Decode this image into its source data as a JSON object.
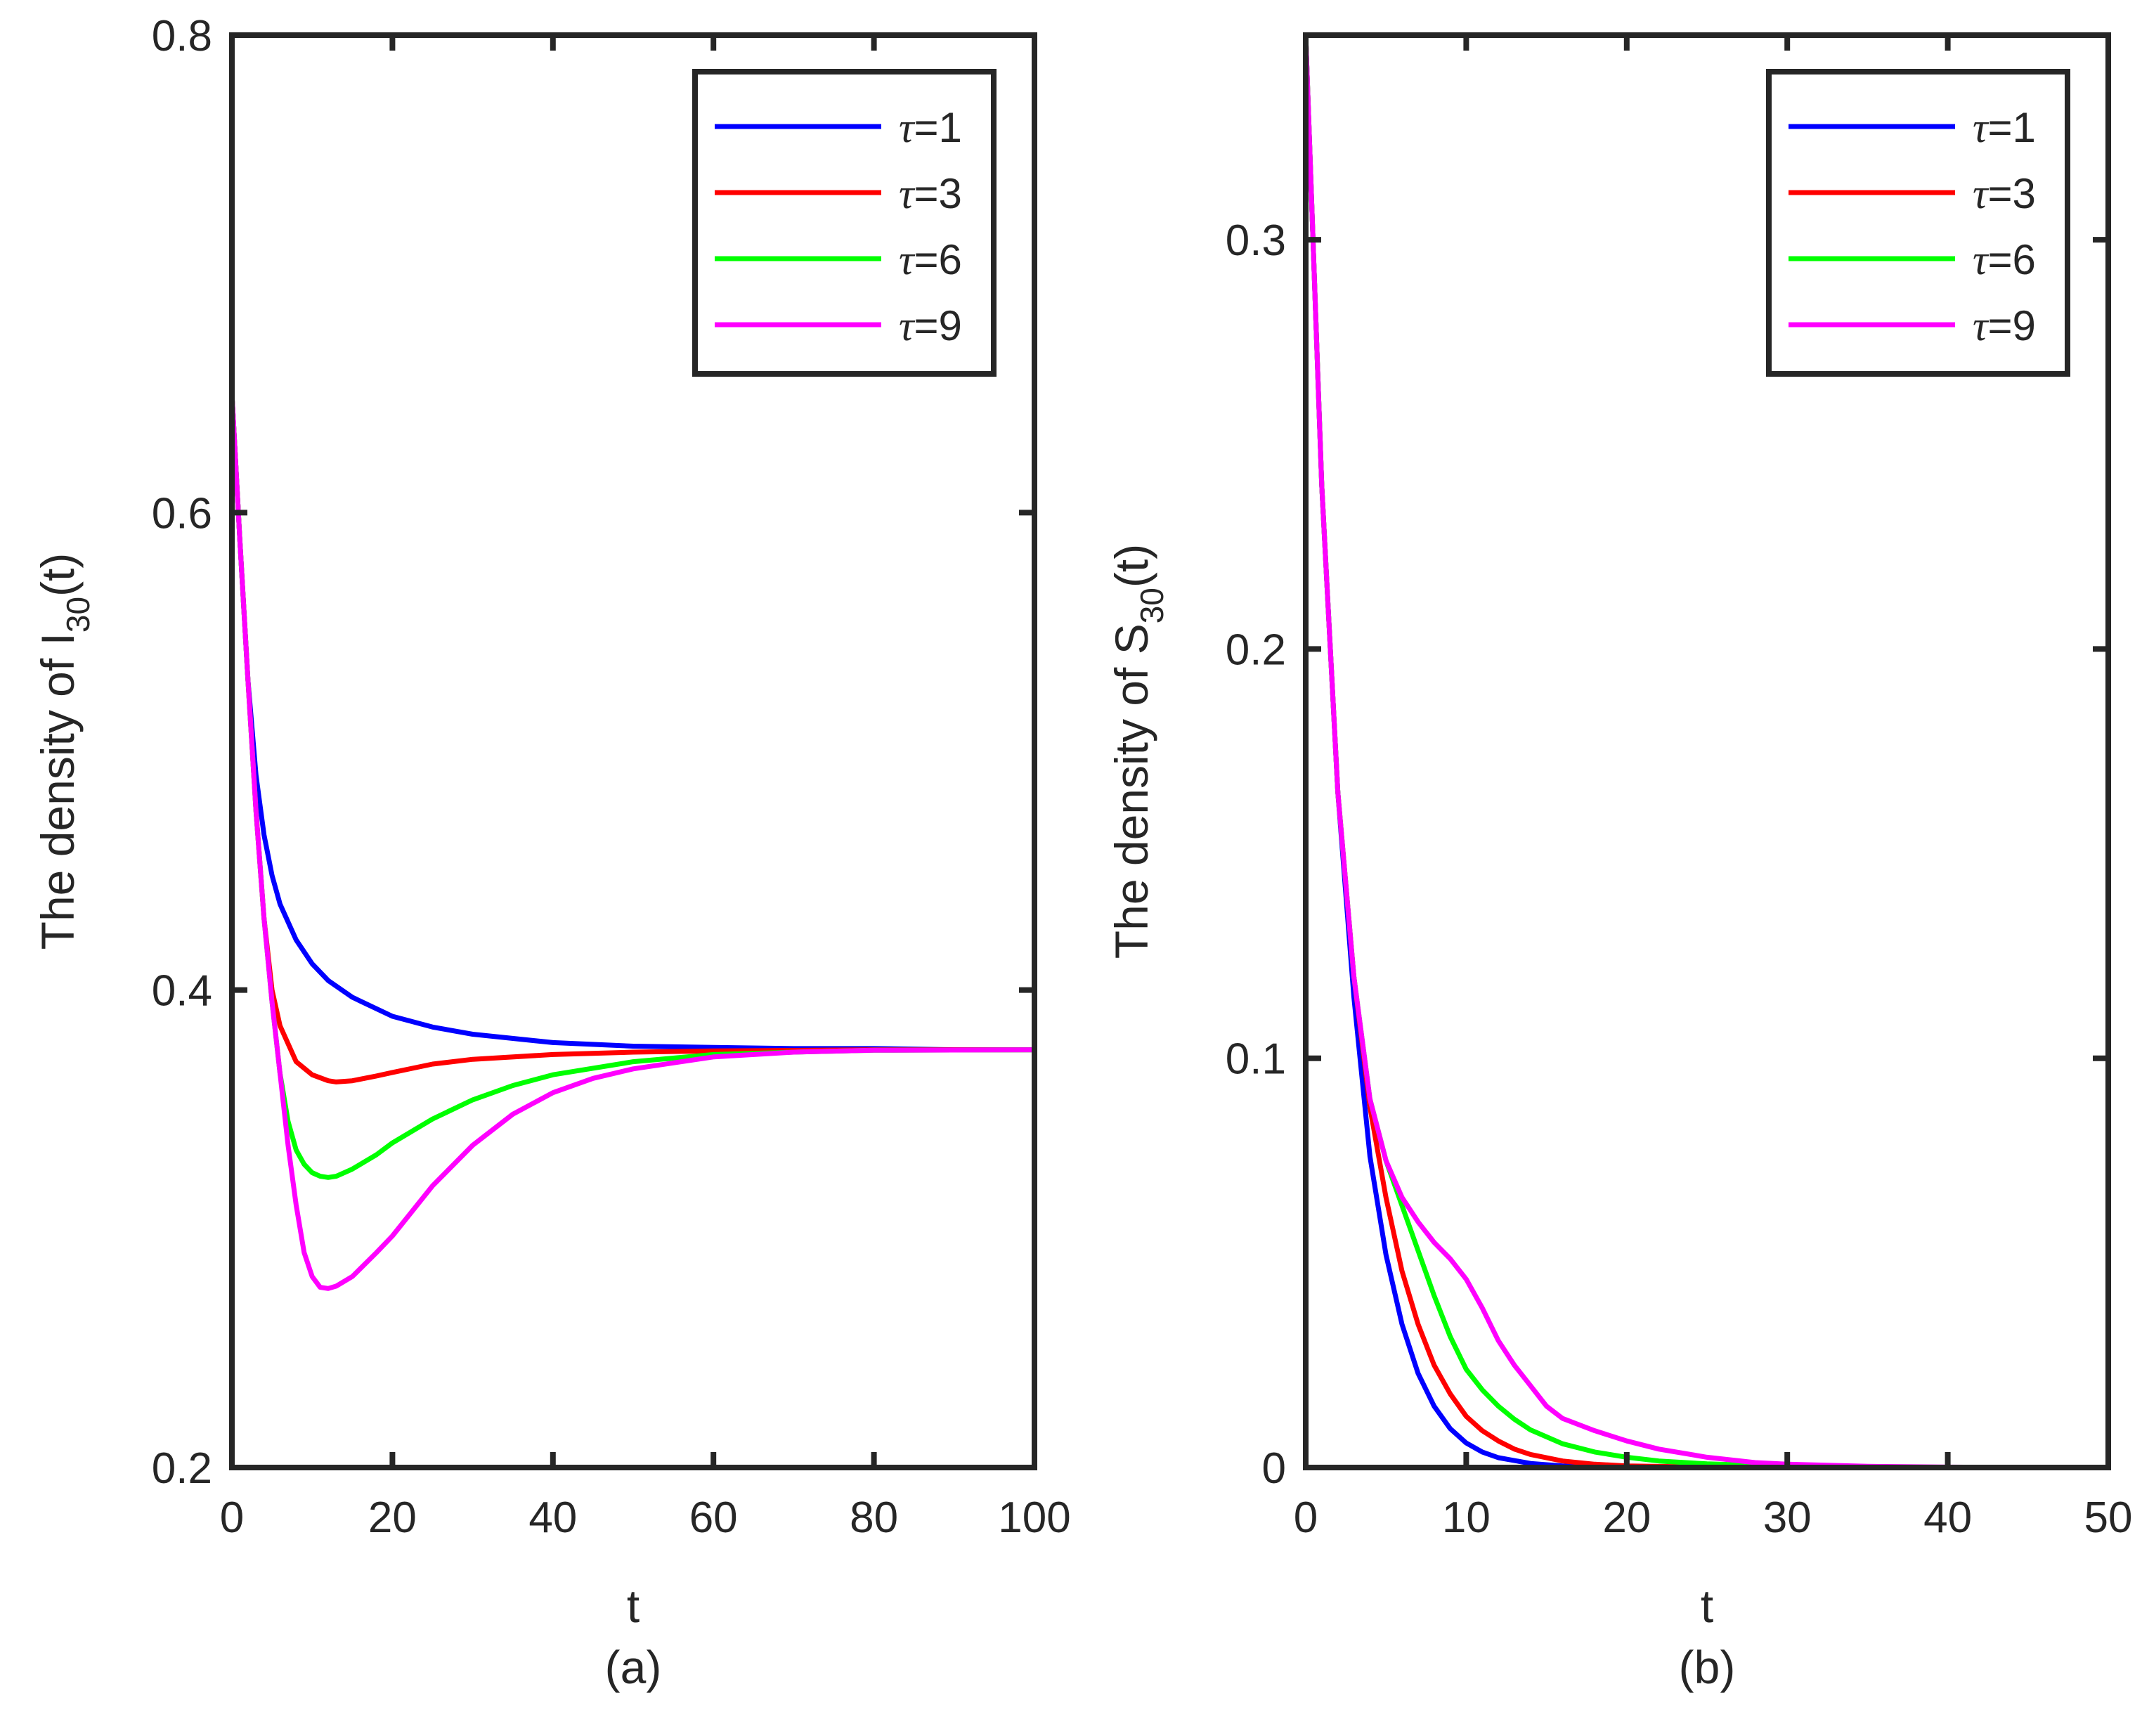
{
  "chart_data": [
    {
      "type": "line",
      "panel_label": "(a)",
      "xlabel": "t",
      "ylabel": {
        "prefix": "The density of I",
        "subscript": "30",
        "suffix": "(t)"
      },
      "xlim": [
        0,
        100
      ],
      "ylim": [
        0.2,
        0.8
      ],
      "xticks": [
        0,
        20,
        40,
        60,
        80,
        100
      ],
      "xtick_labels": [
        "0",
        "20",
        "40",
        "60",
        "80",
        "100"
      ],
      "yticks": [
        0.2,
        0.4,
        0.6,
        0.8
      ],
      "ytick_labels": [
        "0.2",
        "0.4",
        "0.6",
        "0.8"
      ],
      "legend_position": "top-right",
      "series": [
        {
          "name": "τ=1",
          "symbol": "τ",
          "value_text": "=1",
          "color": "#0000ff",
          "x": [
            0,
            1,
            2,
            3,
            4,
            5,
            6,
            8,
            10,
            12,
            15,
            20,
            25,
            30,
            40,
            50,
            60,
            70,
            80,
            90,
            100
          ],
          "y": [
            0.65,
            0.588,
            0.53,
            0.49,
            0.465,
            0.448,
            0.436,
            0.421,
            0.411,
            0.404,
            0.397,
            0.389,
            0.3845,
            0.3815,
            0.378,
            0.3765,
            0.376,
            0.3755,
            0.3755,
            0.375,
            0.375
          ]
        },
        {
          "name": "τ=3",
          "symbol": "τ",
          "value_text": "=3",
          "color": "#ff0000",
          "x": [
            0,
            1,
            2,
            3,
            4,
            5,
            6,
            8,
            10,
            12,
            13,
            15,
            18,
            20,
            25,
            30,
            40,
            50,
            60,
            80,
            100
          ],
          "y": [
            0.65,
            0.588,
            0.53,
            0.475,
            0.43,
            0.4,
            0.385,
            0.37,
            0.3645,
            0.362,
            0.3615,
            0.362,
            0.364,
            0.3655,
            0.369,
            0.371,
            0.373,
            0.374,
            0.3745,
            0.375,
            0.375
          ]
        },
        {
          "name": "τ=6",
          "symbol": "τ",
          "value_text": "=6",
          "color": "#00ff00",
          "x": [
            0,
            1,
            2,
            3,
            4,
            5,
            6,
            7,
            8,
            9,
            10,
            11,
            12,
            13,
            15,
            18,
            20,
            25,
            30,
            35,
            40,
            50,
            60,
            70,
            80,
            100
          ],
          "y": [
            0.65,
            0.588,
            0.53,
            0.475,
            0.43,
            0.395,
            0.365,
            0.345,
            0.333,
            0.327,
            0.3235,
            0.322,
            0.3215,
            0.322,
            0.325,
            0.331,
            0.336,
            0.346,
            0.354,
            0.36,
            0.3645,
            0.37,
            0.373,
            0.374,
            0.3748,
            0.375
          ]
        },
        {
          "name": "τ=9",
          "symbol": "τ",
          "value_text": "=9",
          "color": "#ff00ff",
          "x": [
            0,
            1,
            2,
            3,
            4,
            5,
            6,
            7,
            8,
            9,
            10,
            11,
            12,
            13,
            15,
            18,
            20,
            25,
            30,
            35,
            40,
            45,
            50,
            60,
            70,
            80,
            100
          ],
          "y": [
            0.65,
            0.588,
            0.53,
            0.475,
            0.43,
            0.395,
            0.365,
            0.335,
            0.31,
            0.29,
            0.28,
            0.2755,
            0.275,
            0.276,
            0.28,
            0.29,
            0.297,
            0.318,
            0.335,
            0.348,
            0.357,
            0.363,
            0.367,
            0.372,
            0.374,
            0.3748,
            0.375
          ]
        }
      ]
    },
    {
      "type": "line",
      "panel_label": "(b)",
      "xlabel": "t",
      "ylabel": {
        "prefix": "The density of S",
        "subscript": "30",
        "suffix": "(t)"
      },
      "xlim": [
        0,
        50
      ],
      "ylim": [
        0,
        0.35
      ],
      "xticks": [
        0,
        10,
        20,
        30,
        40,
        50
      ],
      "xtick_labels": [
        "0",
        "10",
        "20",
        "30",
        "40",
        "50"
      ],
      "yticks": [
        0,
        0.1,
        0.2,
        0.3
      ],
      "ytick_labels": [
        "0",
        "0.1",
        "0.2",
        "0.3"
      ],
      "legend_position": "top-right",
      "series": [
        {
          "name": "τ=1",
          "symbol": "τ",
          "value_text": "=1",
          "color": "#0000ff",
          "x": [
            0,
            1,
            2,
            3,
            4,
            5,
            6,
            7,
            8,
            9,
            10,
            11,
            12,
            14,
            16,
            20,
            25,
            30,
            40,
            50
          ],
          "y": [
            0.35,
            0.24,
            0.165,
            0.115,
            0.076,
            0.052,
            0.035,
            0.023,
            0.015,
            0.0095,
            0.006,
            0.0038,
            0.0024,
            0.001,
            0.0004,
            0.0001,
            0.0,
            0.0,
            0.0,
            0.0
          ]
        },
        {
          "name": "τ=3",
          "symbol": "τ",
          "value_text": "=3",
          "color": "#ff0000",
          "x": [
            0,
            1,
            2,
            3,
            4,
            5,
            6,
            7,
            8,
            9,
            10,
            11,
            12,
            13,
            14,
            16,
            18,
            20,
            25,
            30,
            40,
            50
          ],
          "y": [
            0.35,
            0.24,
            0.165,
            0.12,
            0.088,
            0.066,
            0.048,
            0.035,
            0.025,
            0.018,
            0.0125,
            0.009,
            0.0065,
            0.0045,
            0.0032,
            0.0016,
            0.0008,
            0.0004,
            0.0001,
            0.0,
            0.0,
            0.0
          ]
        },
        {
          "name": "τ=6",
          "symbol": "τ",
          "value_text": "=6",
          "color": "#00ff00",
          "x": [
            0,
            1,
            2,
            3,
            4,
            5,
            6,
            7,
            8,
            9,
            10,
            11,
            12,
            13,
            14,
            16,
            18,
            20,
            22,
            25,
            30,
            35,
            40,
            50
          ],
          "y": [
            0.35,
            0.24,
            0.165,
            0.12,
            0.09,
            0.075,
            0.064,
            0.053,
            0.042,
            0.032,
            0.024,
            0.019,
            0.015,
            0.0118,
            0.0092,
            0.0058,
            0.0038,
            0.0025,
            0.0016,
            0.0009,
            0.0003,
            0.0001,
            0.0,
            0.0
          ]
        },
        {
          "name": "τ=9",
          "symbol": "τ",
          "value_text": "=9",
          "color": "#ff00ff",
          "x": [
            0,
            1,
            2,
            3,
            4,
            5,
            6,
            7,
            8,
            9,
            10,
            11,
            12,
            13,
            14,
            15,
            16,
            18,
            20,
            22,
            25,
            28,
            30,
            35,
            40,
            50
          ],
          "y": [
            0.35,
            0.24,
            0.165,
            0.12,
            0.09,
            0.075,
            0.066,
            0.06,
            0.055,
            0.051,
            0.046,
            0.039,
            0.031,
            0.025,
            0.02,
            0.015,
            0.012,
            0.009,
            0.0065,
            0.0045,
            0.0025,
            0.0012,
            0.0008,
            0.0003,
            0.0001,
            0.0
          ]
        }
      ]
    }
  ]
}
